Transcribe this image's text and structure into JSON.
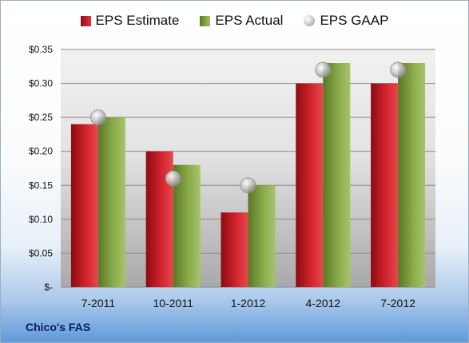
{
  "chart_data": {
    "type": "bar",
    "title": "Chico's FAS",
    "categories": [
      "7-2011",
      "10-2011",
      "1-2012",
      "4-2012",
      "7-2012"
    ],
    "series": [
      {
        "name": "EPS Estimate",
        "kind": "bar",
        "color": "#c81e27",
        "values": [
          0.24,
          0.2,
          0.11,
          0.3,
          0.3
        ]
      },
      {
        "name": "EPS Actual",
        "kind": "bar",
        "color": "#7f9e3e",
        "values": [
          0.25,
          0.18,
          0.15,
          0.33,
          0.33
        ]
      },
      {
        "name": "EPS GAAP",
        "kind": "marker",
        "color": "#b4b4b4",
        "values": [
          0.25,
          0.16,
          0.15,
          0.32,
          0.32
        ]
      }
    ],
    "yticks": [
      "$-",
      "$0.05",
      "$0.10",
      "$0.15",
      "$0.20",
      "$0.25",
      "$0.30",
      "$0.35"
    ],
    "ylim": [
      0,
      0.35
    ],
    "grid": true,
    "legend": "top-center"
  }
}
